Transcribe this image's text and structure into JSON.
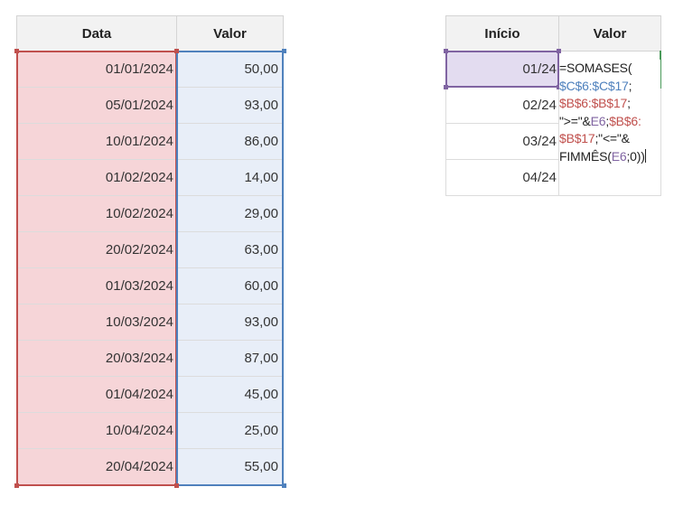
{
  "left_table": {
    "headers": {
      "date": "Data",
      "value": "Valor"
    },
    "rows": [
      {
        "date": "01/01/2024",
        "value": "50,00"
      },
      {
        "date": "05/01/2024",
        "value": "93,00"
      },
      {
        "date": "10/01/2024",
        "value": "86,00"
      },
      {
        "date": "01/02/2024",
        "value": "14,00"
      },
      {
        "date": "10/02/2024",
        "value": "29,00"
      },
      {
        "date": "20/02/2024",
        "value": "63,00"
      },
      {
        "date": "01/03/2024",
        "value": "60,00"
      },
      {
        "date": "10/03/2024",
        "value": "93,00"
      },
      {
        "date": "20/03/2024",
        "value": "87,00"
      },
      {
        "date": "01/04/2024",
        "value": "45,00"
      },
      {
        "date": "10/04/2024",
        "value": "25,00"
      },
      {
        "date": "20/04/2024",
        "value": "55,00"
      }
    ]
  },
  "right_table": {
    "headers": {
      "start": "Início",
      "value": "Valor"
    },
    "rows": [
      {
        "start": "01/24"
      },
      {
        "start": "02/24"
      },
      {
        "start": "03/24"
      },
      {
        "start": "04/24"
      }
    ]
  },
  "formula": {
    "l1": "=SOMASES(",
    "l2": "$C$6:$C$17",
    "l2b": ";",
    "l3": "$B$6:$B$17",
    "l3b": ";",
    "l4a": "\">=\"&",
    "l4b": "E6",
    "l4c": ";",
    "l4d": "$B$6:",
    "l5a": "$B$17",
    "l5b": ";\"<=\"&",
    "l6a": "FIMMÊS(",
    "l6b": "E6",
    "l6c": ";0))"
  },
  "colors": {
    "date_range": "#c0504d",
    "value_range": "#4f81bd",
    "criteria_cell": "#8064a2",
    "active_cell": "#4a9a5a"
  }
}
